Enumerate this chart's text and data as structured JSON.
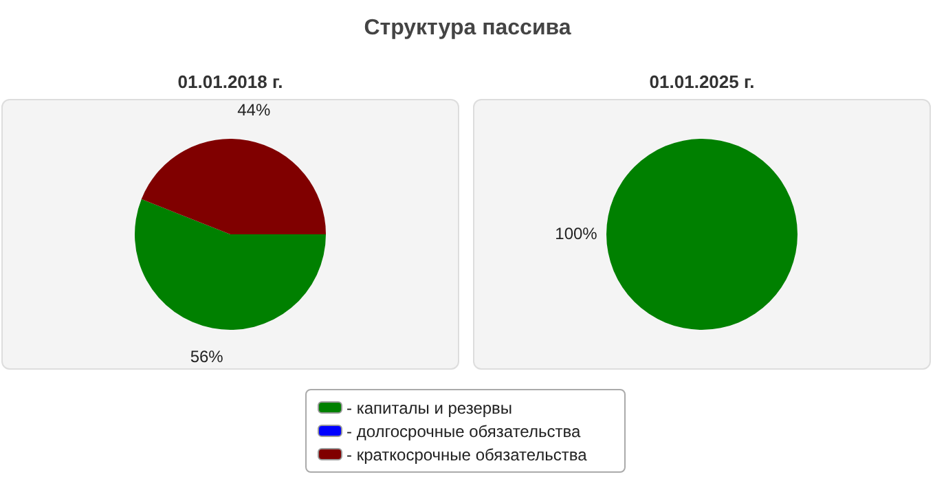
{
  "chart_data": [
    {
      "type": "pie",
      "title": "01.01.2018 г.",
      "annotations": [
        "Структура пассива"
      ],
      "categories": [
        "- капиталы и резервы",
        "- долгосрочные обязательства",
        "- краткосрочные обязательства"
      ],
      "values": [
        56,
        0,
        44
      ],
      "colors": [
        "#008000",
        "#0000ff",
        "#800000"
      ],
      "value_labels": [
        "56%",
        null,
        "44%"
      ],
      "legend": "bottom"
    },
    {
      "type": "pie",
      "title": "01.01.2025 г.",
      "categories": [
        null,
        null,
        null
      ],
      "values": [
        100,
        0,
        0
      ],
      "colors": [
        "#008000",
        "#0000ff",
        "#800000"
      ],
      "value_labels": [
        "100%",
        null,
        null
      ]
    }
  ]
}
